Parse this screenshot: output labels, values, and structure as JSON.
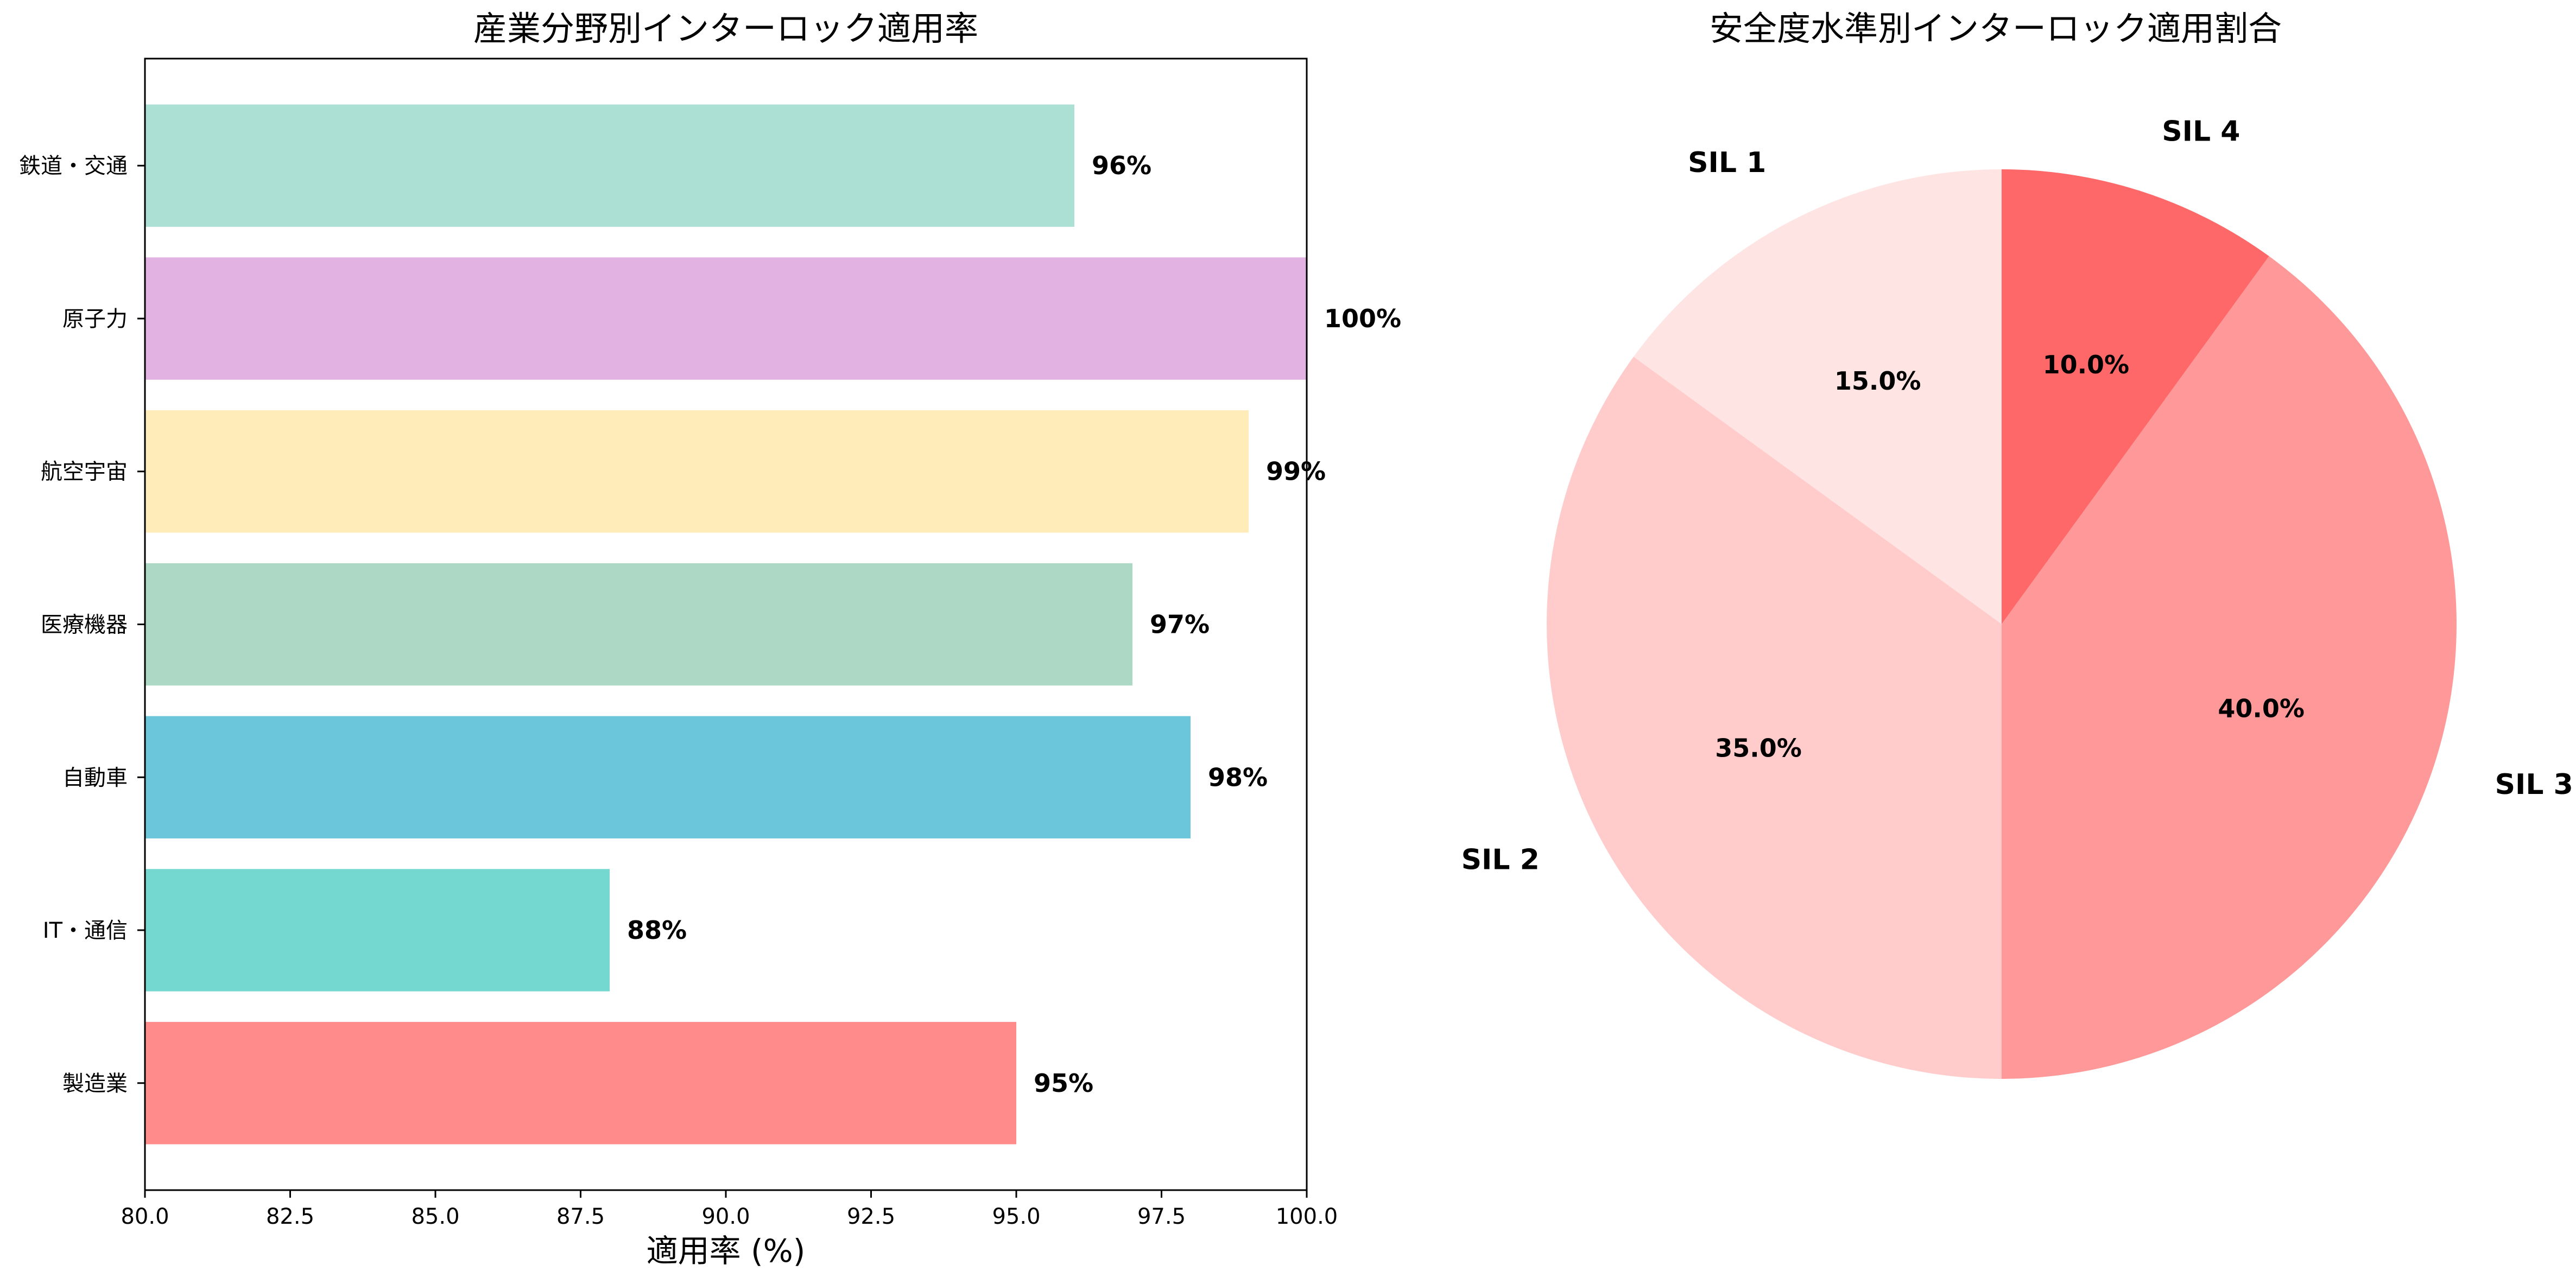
{
  "chart_data": [
    {
      "type": "bar",
      "orientation": "horizontal",
      "title": "産業分野別インターロック適用率",
      "xlabel": "適用率 (%)",
      "ylabel": "",
      "xlim": [
        80.0,
        100.0
      ],
      "xticks": [
        "80.0",
        "82.5",
        "85.0",
        "87.5",
        "90.0",
        "92.5",
        "95.0",
        "97.5",
        "100.0"
      ],
      "categories": [
        "製造業",
        "IT・通信",
        "自動車",
        "医療機器",
        "航空宇宙",
        "原子力",
        "鉄道・交通"
      ],
      "values": [
        95,
        88,
        98,
        97,
        99,
        100,
        96
      ],
      "value_labels": [
        "95%",
        "88%",
        "98%",
        "97%",
        "99%",
        "100%",
        "96%"
      ],
      "colors": [
        "#FF8B8B",
        "#74D7D0",
        "#6BC5DB",
        "#ADD8C6",
        "#FFECB9",
        "#E2B3E2",
        "#ADE0D5"
      ],
      "grid": false,
      "legend": "none"
    },
    {
      "type": "pie",
      "title": "安全度水準別インターロック適用割合",
      "labels": [
        "SIL 1",
        "SIL 2",
        "SIL 3",
        "SIL 4"
      ],
      "values": [
        15.0,
        35.0,
        40.0,
        10.0
      ],
      "pct_labels": [
        "15.0%",
        "35.0%",
        "40.0%",
        "10.0%"
      ],
      "colors": [
        "#FFE4E4",
        "#FFCBCB",
        "#FF9999",
        "#FF6868"
      ],
      "start_angle": 90,
      "direction": "counterclockwise",
      "legend": "none"
    }
  ]
}
